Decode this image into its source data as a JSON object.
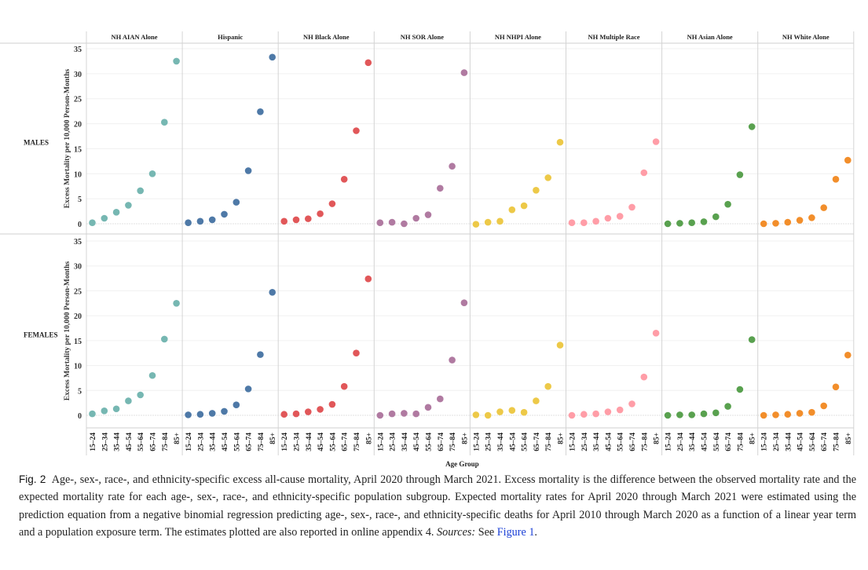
{
  "chart_data": {
    "type": "scatter",
    "xlabel": "Age Group",
    "ylabel": "Excess Mortality per 10,000 Person-Months",
    "ylim": [
      -2,
      35
    ],
    "yticks": [
      0,
      5,
      10,
      15,
      20,
      25,
      30,
      35
    ],
    "grid": true,
    "categories": [
      "15–24",
      "25–34",
      "35–44",
      "45–54",
      "55–64",
      "65–74",
      "75–84",
      "85+"
    ],
    "rows": [
      "MALES",
      "FEMALES"
    ],
    "series": [
      {
        "name": "NH AIAN Alone",
        "color": "#76b7b2",
        "males": [
          0.2,
          1.1,
          2.3,
          3.7,
          6.6,
          10.0,
          20.3,
          32.5
        ],
        "females": [
          0.3,
          0.9,
          1.3,
          2.9,
          4.1,
          8.0,
          15.3,
          22.5
        ]
      },
      {
        "name": "Hispanic",
        "color": "#4e79a7",
        "males": [
          0.2,
          0.5,
          0.8,
          1.9,
          4.3,
          10.6,
          22.4,
          33.3
        ],
        "females": [
          0.1,
          0.2,
          0.4,
          0.8,
          2.1,
          5.3,
          12.2,
          24.7
        ]
      },
      {
        "name": "NH Black Alone",
        "color": "#e15759",
        "males": [
          0.5,
          0.8,
          1.0,
          2.0,
          4.0,
          8.9,
          18.6,
          32.2
        ],
        "females": [
          0.2,
          0.3,
          0.7,
          1.2,
          2.2,
          5.8,
          12.5,
          27.4
        ]
      },
      {
        "name": "NH SOR Alone",
        "color": "#b07aa1",
        "males": [
          0.2,
          0.3,
          0.0,
          1.1,
          1.8,
          7.1,
          11.5,
          30.2
        ],
        "females": [
          0.0,
          0.3,
          0.4,
          0.3,
          1.6,
          3.3,
          11.1,
          22.6
        ]
      },
      {
        "name": "NH NHPI Alone",
        "color": "#edc948",
        "males": [
          -0.1,
          0.3,
          0.5,
          2.8,
          3.6,
          6.7,
          9.2,
          16.3
        ],
        "females": [
          0.1,
          0.0,
          0.7,
          1.0,
          0.6,
          2.9,
          5.8,
          14.1
        ]
      },
      {
        "name": "NH Multiple Race",
        "color": "#ff9da7",
        "males": [
          0.2,
          0.2,
          0.5,
          1.1,
          1.5,
          3.3,
          10.2,
          16.4
        ],
        "females": [
          0.0,
          0.2,
          0.3,
          0.7,
          1.1,
          2.3,
          7.7,
          16.5
        ]
      },
      {
        "name": "NH Asian Alone",
        "color": "#59a14f",
        "males": [
          0.0,
          0.1,
          0.2,
          0.4,
          1.4,
          3.9,
          9.8,
          19.4
        ],
        "females": [
          0.0,
          0.1,
          0.1,
          0.3,
          0.5,
          1.8,
          5.2,
          15.2
        ]
      },
      {
        "name": "NH White Alone",
        "color": "#f28e2b",
        "males": [
          0.0,
          0.1,
          0.3,
          0.7,
          1.2,
          3.2,
          8.9,
          12.7
        ],
        "females": [
          0.0,
          0.1,
          0.2,
          0.4,
          0.6,
          1.9,
          5.7,
          12.1
        ]
      }
    ]
  },
  "caption": {
    "fig_label": "Fig. 2",
    "text": "Age-, sex-, race-, and ethnicity-specific excess all-cause mortality, April 2020 through March 2021. Excess mortality is the difference between the observed mortality rate and the expected mortality rate for each age-, sex-, race-, and ethnicity-specific population subgroup. Expected mortality rates for April 2020 through March 2021 were estimated using the prediction equation from a negative binomial regression predicting age-, sex-, race-, and ethnicity-specific deaths for April 2010 through March 2020 as a function of a linear year term and a population exposure term. The estimates plotted are also reported in online appendix 4.",
    "sources_label": "Sources:",
    "sources_text": "See",
    "sources_link": "Figure 1",
    "end": "."
  }
}
